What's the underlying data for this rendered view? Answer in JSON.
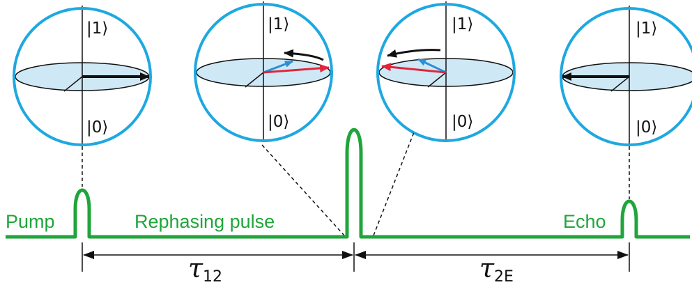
{
  "spheres": [
    {
      "name": "sphere-pump",
      "top_label": "|1⟩",
      "bottom_label": "|0⟩"
    },
    {
      "name": "sphere-dephasing",
      "top_label": "|1⟩",
      "bottom_label": "|0⟩"
    },
    {
      "name": "sphere-rephasing",
      "top_label": "|1⟩",
      "bottom_label": "|0⟩"
    },
    {
      "name": "sphere-echo",
      "top_label": "|1⟩",
      "bottom_label": "|0⟩"
    }
  ],
  "labels": {
    "pump": "Pump",
    "rephasing": "Rephasing pulse",
    "echo": "Echo",
    "tau12_symbol": "τ",
    "tau12_sub": "12",
    "tau2e_symbol": "τ",
    "tau2e_sub": "2E"
  },
  "colors": {
    "sphere_outline": "#1ea8e0",
    "equator_fill": "#cfe8f6",
    "pulse_line": "#1fa53a",
    "vector_black": "#111111",
    "vector_red": "#e0263a",
    "vector_blue": "#2a8fd6"
  }
}
